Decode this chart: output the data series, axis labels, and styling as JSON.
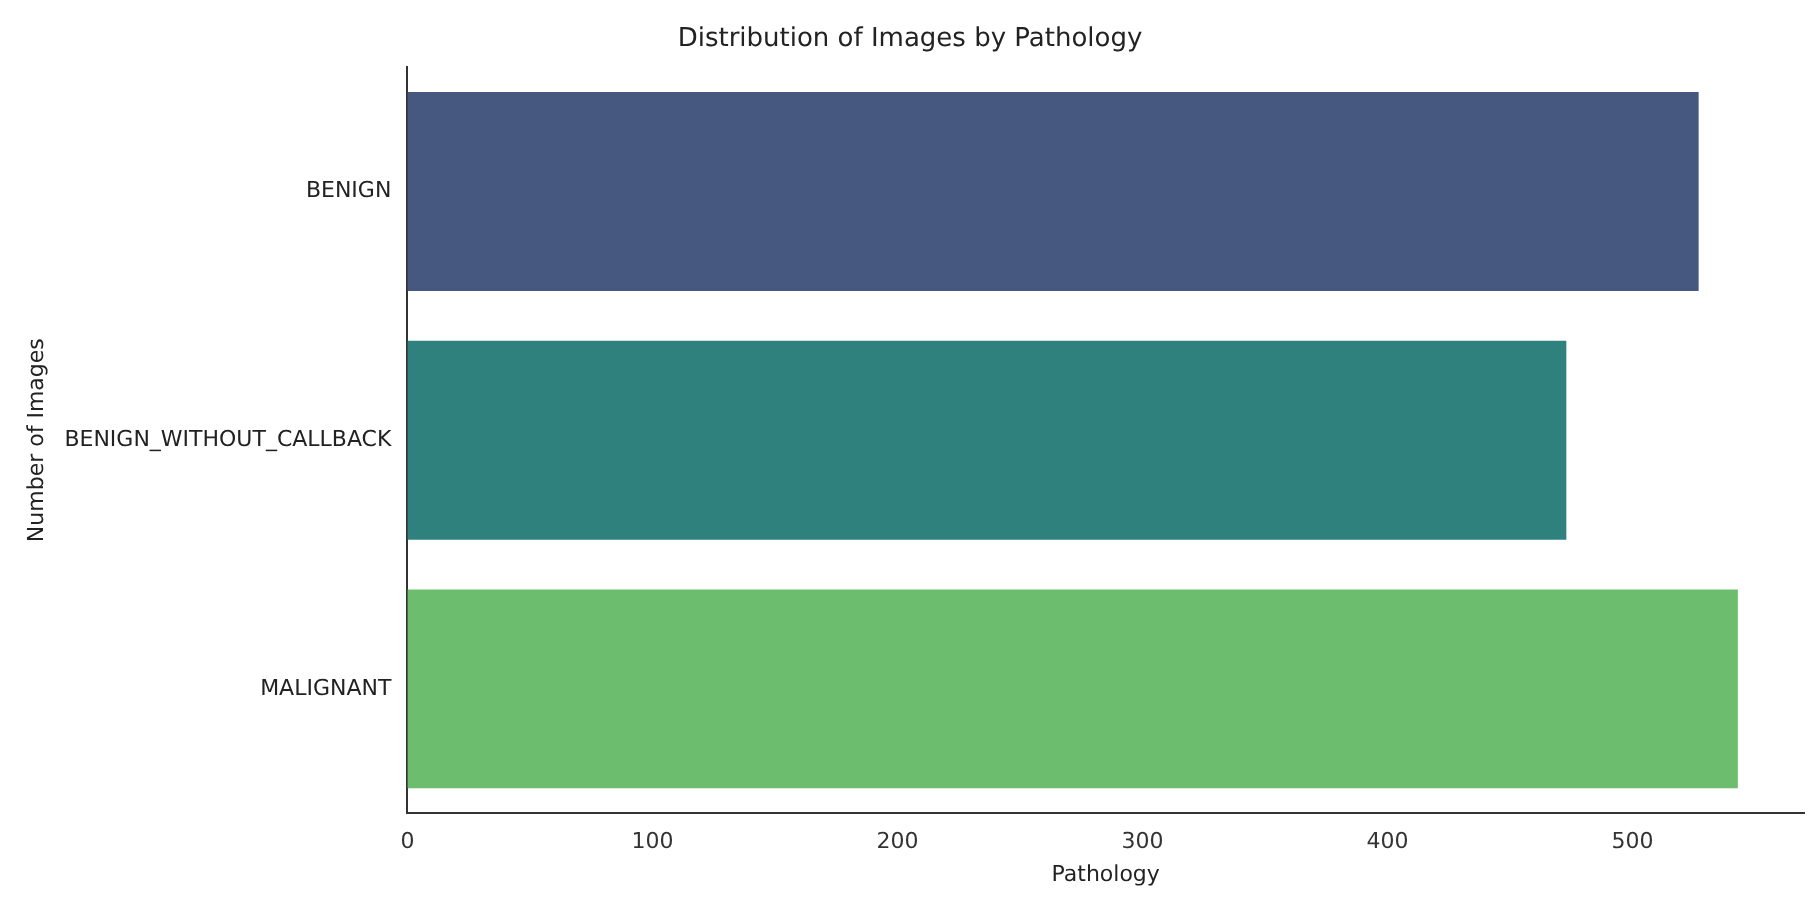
{
  "chart_data": {
    "type": "bar",
    "orientation": "horizontal",
    "title": "Distribution of Images by Pathology",
    "xlabel": "Pathology",
    "ylabel": "Number of Images",
    "categories": [
      "BENIGN",
      "BENIGN_WITHOUT_CALLBACK",
      "MALIGNANT"
    ],
    "values": [
      527,
      473,
      543
    ],
    "colors": [
      "#46587f",
      "#2e817c",
      "#6cbd6d"
    ],
    "xlim": [
      0,
      570
    ],
    "xticks": [
      0,
      100,
      200,
      300,
      400,
      500
    ],
    "grid": false,
    "legend": false
  }
}
